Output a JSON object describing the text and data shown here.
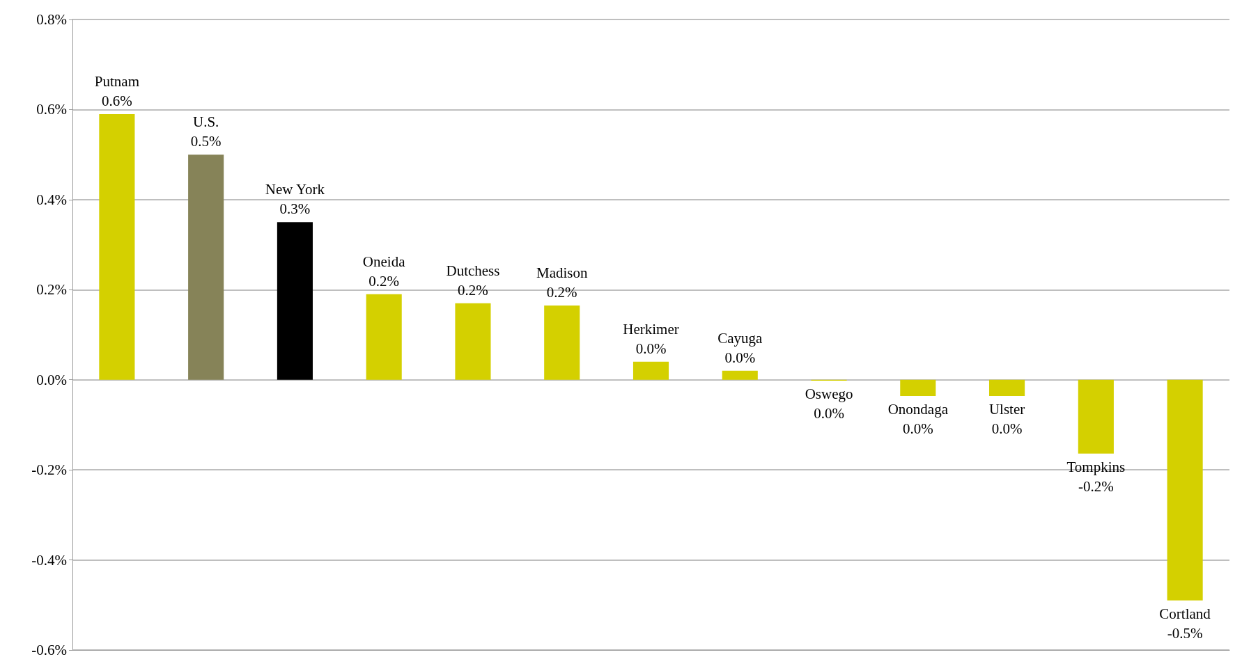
{
  "chart_data": {
    "type": "bar",
    "categories": [
      "Putnam",
      "U.S.",
      "New York",
      "Oneida",
      "Dutchess",
      "Madison",
      "Herkimer",
      "Cayuga",
      "Oswego",
      "Onondaga",
      "Ulster",
      "Tompkins",
      "Cortland"
    ],
    "values": [
      0.59,
      0.5,
      0.35,
      0.19,
      0.17,
      0.165,
      0.04,
      0.02,
      -0.002,
      -0.036,
      -0.036,
      -0.164,
      -0.49
    ],
    "colors": [
      "#d4d000",
      "#868358",
      "#000000",
      "#d4d000",
      "#d4d000",
      "#d4d000",
      "#d4d000",
      "#d4d000",
      "#d4d000",
      "#d4d000",
      "#d4d000",
      "#d4d000",
      "#d4d000"
    ],
    "value_labels": [
      "0.6%",
      "0.5%",
      "0.3%",
      "0.2%",
      "0.2%",
      "0.2%",
      "0.0%",
      "0.0%",
      "0.0%",
      "0.0%",
      "0.0%",
      "-0.2%",
      "-0.5%"
    ],
    "ylim": [
      -0.6,
      0.8
    ],
    "yticks": [
      {
        "value": -0.6,
        "label": "-0.6%"
      },
      {
        "value": -0.4,
        "label": "-0.4%"
      },
      {
        "value": -0.2,
        "label": "-0.2%"
      },
      {
        "value": 0,
        "label": "0.0%"
      },
      {
        "value": 0.2,
        "label": "0.2%"
      },
      {
        "value": 0.4,
        "label": "0.4%"
      },
      {
        "value": 0.6,
        "label": "0.6%"
      },
      {
        "value": 0.8,
        "label": "0.8%"
      }
    ],
    "grid": "y",
    "tick_labels": "y"
  }
}
